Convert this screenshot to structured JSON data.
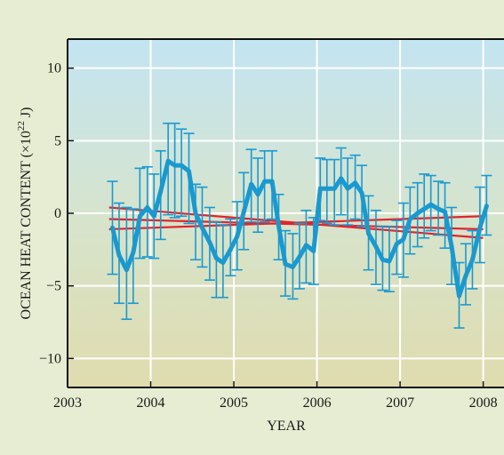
{
  "chart_data": {
    "type": "line",
    "xlabel": "YEAR",
    "ylabel": "OCEAN HEAT CONTENT (×10",
    "ylabel_sup": "22",
    "ylabel_unit": " J)",
    "xlim": [
      2003,
      2008.25
    ],
    "ylim": [
      -12,
      12
    ],
    "xticks": [
      2003,
      2004,
      2005,
      2006,
      2007,
      2008
    ],
    "yticks": [
      -10,
      -5,
      0,
      5,
      10
    ],
    "ytick_labels": [
      "−10",
      "−5",
      "0",
      "5",
      "10"
    ],
    "grid": true,
    "series": [
      {
        "style": "line-with-error-bars",
        "color": "#1a99cf",
        "x": [
          2003.54,
          2003.62,
          2003.71,
          2003.79,
          2003.87,
          2003.96,
          2004.04,
          2004.12,
          2004.21,
          2004.29,
          2004.37,
          2004.46,
          2004.54,
          2004.62,
          2004.71,
          2004.79,
          2004.87,
          2004.96,
          2005.04,
          2005.12,
          2005.21,
          2005.29,
          2005.37,
          2005.46,
          2005.54,
          2005.62,
          2005.71,
          2005.79,
          2005.87,
          2005.96,
          2006.04,
          2006.12,
          2006.21,
          2006.29,
          2006.37,
          2006.46,
          2006.54,
          2006.62,
          2006.71,
          2006.79,
          2006.87,
          2006.96,
          2007.04,
          2007.12,
          2007.21,
          2007.29,
          2007.37,
          2007.46,
          2007.54,
          2007.62,
          2007.71,
          2007.79,
          2007.87,
          2007.96,
          2008.04
        ],
        "y": [
          -1.0,
          -2.9,
          -3.9,
          -2.7,
          -0.2,
          0.4,
          -0.2,
          1.5,
          3.6,
          3.3,
          3.3,
          2.9,
          0.0,
          -1.0,
          -2.0,
          -3.1,
          -3.4,
          -2.5,
          -1.6,
          0.1,
          2.0,
          1.3,
          2.2,
          2.2,
          -0.9,
          -3.5,
          -3.7,
          -3.0,
          -2.2,
          -2.6,
          1.7,
          1.7,
          1.7,
          2.4,
          1.7,
          2.1,
          1.4,
          -1.4,
          -2.3,
          -3.2,
          -3.3,
          -2.1,
          -1.8,
          -0.4,
          0.0,
          0.3,
          0.6,
          0.3,
          0.1,
          -2.3,
          -5.7,
          -4.3,
          -3.2,
          -1.0,
          0.5
        ],
        "err_low": [
          -4.2,
          -6.2,
          -7.3,
          -6.2,
          -3.1,
          -3.0,
          -3.1,
          -1.8,
          -0.1,
          -0.3,
          -0.2,
          -0.7,
          -3.2,
          -3.7,
          -4.6,
          -5.8,
          -5.8,
          -4.3,
          -3.9,
          -2.5,
          -0.6,
          -1.3,
          -0.6,
          -0.4,
          -3.2,
          -5.7,
          -5.9,
          -5.2,
          -4.8,
          -4.9,
          -0.5,
          -0.7,
          -0.8,
          -0.1,
          -0.8,
          -0.4,
          -0.9,
          -3.9,
          -4.9,
          -5.3,
          -5.4,
          -4.2,
          -4.4,
          -2.8,
          -2.3,
          -1.7,
          -1.2,
          -1.5,
          -2.4,
          -4.9,
          -7.9,
          -6.3,
          -5.2,
          -3.4,
          -1.5
        ],
        "err_high": [
          2.2,
          0.7,
          0.4,
          0.3,
          3.1,
          3.2,
          2.7,
          4.3,
          6.2,
          6.2,
          5.8,
          5.5,
          2.0,
          1.8,
          0.4,
          -0.6,
          -0.8,
          -0.4,
          0.8,
          2.8,
          4.4,
          3.8,
          4.3,
          4.3,
          1.3,
          -1.2,
          -1.4,
          -0.7,
          0.2,
          -0.3,
          3.8,
          3.7,
          3.7,
          4.5,
          3.8,
          4.0,
          3.3,
          1.2,
          0.2,
          -0.9,
          -0.9,
          -0.5,
          0.7,
          1.8,
          2.1,
          2.7,
          2.6,
          2.2,
          2.1,
          0.4,
          -3.4,
          -2.1,
          -1.2,
          1.8,
          2.6
        ]
      },
      {
        "style": "trend-line",
        "color": "#e0252f",
        "x": [
          2003.5,
          2008.0
        ],
        "y": [
          0.4,
          -1.7
        ]
      },
      {
        "style": "trend-line",
        "color": "#e0252f",
        "x": [
          2003.5,
          2008.0
        ],
        "y": [
          -0.4,
          -1.1
        ]
      },
      {
        "style": "trend-line",
        "color": "#e0252f",
        "x": [
          2003.5,
          2008.0
        ],
        "y": [
          -1.1,
          -0.2
        ]
      }
    ]
  }
}
